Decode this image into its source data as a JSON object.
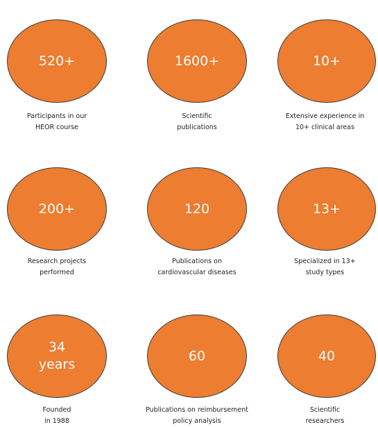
{
  "theme": {
    "circle_color": "#ED7D31",
    "circle_border": "#3a3a3a",
    "text_on_circle": "#ffffff",
    "caption_color": "#222222"
  },
  "stats": [
    {
      "value": "520+",
      "caption": "Participants in our\nHEOR course"
    },
    {
      "value": "1600+",
      "caption": "Scientific\npublications"
    },
    {
      "value": "10+",
      "caption": "Extensive experience in\n10+ clinical areas"
    },
    {
      "value": "200+",
      "caption": "Research projects\nperformed"
    },
    {
      "value": "120",
      "caption": "Publications on\ncardiovascular diseases"
    },
    {
      "value": "13+",
      "caption": "Specialized in 13+\nstudy types"
    },
    {
      "value": "34\nyears",
      "caption": "Founded\nin 1988"
    },
    {
      "value": "60",
      "caption": "Publications on reimbursement\npolicy analysis"
    },
    {
      "value": "40",
      "caption": "Scientific\nresearchers"
    }
  ]
}
